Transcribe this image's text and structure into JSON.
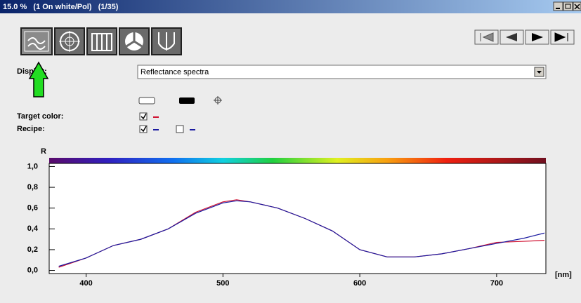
{
  "window": {
    "title": "15.0 %   (1 On white/Pol)   (1/35)"
  },
  "display": {
    "label": "Display:",
    "value": "Reflectance spectra"
  },
  "chart_data": {
    "type": "line",
    "x": [
      380,
      400,
      420,
      440,
      460,
      480,
      500,
      510,
      520,
      540,
      560,
      580,
      600,
      620,
      640,
      660,
      680,
      700,
      720,
      735
    ],
    "series": [
      {
        "name": "Target color:",
        "color": "#d01030",
        "values": [
          0.03,
          0.12,
          0.24,
          0.3,
          0.4,
          0.56,
          0.66,
          0.68,
          0.66,
          0.6,
          0.5,
          0.38,
          0.2,
          0.13,
          0.13,
          0.16,
          0.21,
          0.27,
          0.28,
          0.29
        ]
      },
      {
        "name": "Recipe:",
        "color": "#1a1aa0",
        "values": [
          0.04,
          0.12,
          0.24,
          0.3,
          0.4,
          0.55,
          0.65,
          0.67,
          0.66,
          0.6,
          0.5,
          0.38,
          0.2,
          0.13,
          0.13,
          0.16,
          0.21,
          0.26,
          0.31,
          0.36
        ]
      }
    ],
    "ylabel": "R",
    "xlabel": "[nm]",
    "xlim": [
      373,
      736
    ],
    "ylim": [
      -0.03,
      1.03
    ],
    "xticks": [
      400,
      500,
      600,
      700
    ],
    "yticks": [
      {
        "value": 0,
        "label": "0,0"
      },
      {
        "value": 0.2,
        "label": "0,2"
      },
      {
        "value": 0.4,
        "label": "0,4"
      },
      {
        "value": 0.6,
        "label": "0,6"
      },
      {
        "value": 0.8,
        "label": "0,8"
      },
      {
        "value": 1.0,
        "label": "1,0"
      }
    ]
  }
}
